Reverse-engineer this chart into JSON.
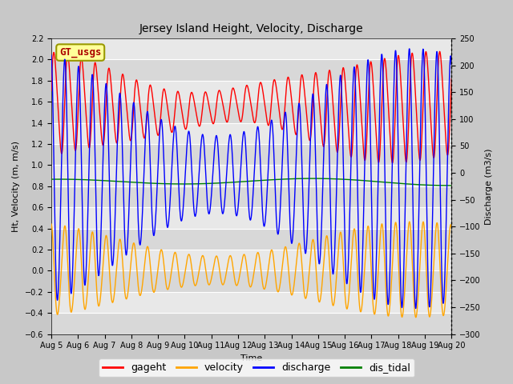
{
  "title": "Jersey Island Height, Velocity, Discharge",
  "xlabel": "Time",
  "ylabel_left": "Ht, Velocity (m, m/s)",
  "ylabel_right": "Discharge (m3/s)",
  "ylim_left": [
    -0.6,
    2.2
  ],
  "ylim_right": [
    -300,
    250
  ],
  "xtick_labels": [
    "Aug 5",
    "Aug 6",
    "Aug 7",
    "Aug 8",
    "Aug 9",
    "Aug 10",
    "Aug 11",
    "Aug 12",
    "Aug 13",
    "Aug 14",
    "Aug 15",
    "Aug 16",
    "Aug 17",
    "Aug 18",
    "Aug 19",
    "Aug 20"
  ],
  "legend_labels": [
    "gageht",
    "velocity",
    "discharge",
    "dis_tidal"
  ],
  "color_gageht": "red",
  "color_velocity": "orange",
  "color_discharge": "blue",
  "color_dis_tidal": "green",
  "gt_usgs_label": "GT_usgs",
  "gt_usgs_bg": "#FFFF99",
  "gt_usgs_fg": "#aa0000",
  "gt_usgs_border": "#999900",
  "fig_bg": "#c8c8c8",
  "plot_bg": "#e8e8e8",
  "band1_color": "#d8d8d8",
  "band2_color": "#e8e8e8",
  "grid_color": "white",
  "n_days": 15,
  "tidal_period_hours": 12.4,
  "linewidth": 1.0,
  "title_fontsize": 10,
  "label_fontsize": 8,
  "tick_fontsize": 7,
  "legend_fontsize": 9
}
